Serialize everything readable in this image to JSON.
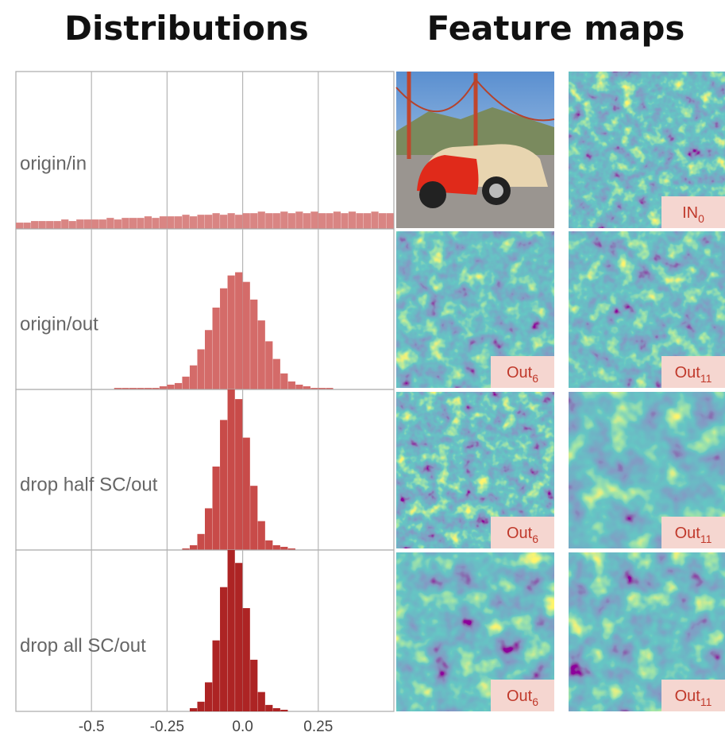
{
  "chart_data": {
    "type": "histogram",
    "title": "Distributions",
    "bins": [
      -0.75,
      -0.725,
      -0.7,
      -0.675,
      -0.65,
      -0.625,
      -0.6,
      -0.575,
      -0.55,
      -0.525,
      -0.5,
      -0.475,
      -0.45,
      -0.425,
      -0.4,
      -0.375,
      -0.35,
      -0.325,
      -0.3,
      -0.275,
      -0.25,
      -0.225,
      -0.2,
      -0.175,
      -0.15,
      -0.125,
      -0.1,
      -0.075,
      -0.05,
      -0.025,
      0,
      0.025,
      0.05,
      0.075,
      0.1,
      0.125,
      0.15,
      0.175,
      0.2,
      0.225,
      0.25,
      0.275,
      0.3,
      0.325,
      0.35,
      0.375,
      0.4,
      0.425,
      0.45,
      0.475,
      0.5
    ],
    "series": [
      {
        "name": "origin/in",
        "color": "#d98583",
        "values": [
          4,
          4,
          5,
          5,
          5,
          5,
          6,
          5,
          6,
          6,
          6,
          6,
          7,
          6,
          7,
          7,
          7,
          8,
          7,
          8,
          8,
          8,
          9,
          8,
          9,
          9,
          10,
          9,
          10,
          9,
          10,
          10,
          11,
          10,
          10,
          11,
          10,
          11,
          10,
          11,
          10,
          10,
          11,
          10,
          11,
          10,
          10,
          11,
          10,
          10
        ]
      },
      {
        "name": "origin/out",
        "color": "#d46b69",
        "values": [
          0,
          0,
          0,
          0,
          0,
          0,
          0,
          0,
          0,
          0,
          0,
          0,
          0,
          1,
          1,
          1,
          1,
          1,
          1,
          2,
          3,
          4,
          8,
          15,
          25,
          37,
          51,
          63,
          71,
          73,
          67,
          56,
          43,
          30,
          19,
          10,
          5,
          3,
          2,
          1,
          1,
          1,
          0,
          0,
          0,
          0,
          0,
          0,
          0,
          0
        ]
      },
      {
        "name": "drop half SC/out",
        "color": "#c84b49",
        "values": [
          0,
          0,
          0,
          0,
          0,
          0,
          0,
          0,
          0,
          0,
          0,
          0,
          0,
          0,
          0,
          0,
          0,
          0,
          0,
          0,
          0,
          0,
          1,
          3,
          10,
          26,
          52,
          81,
          100,
          94,
          70,
          40,
          18,
          6,
          3,
          2,
          1,
          0,
          0,
          0,
          0,
          0,
          0,
          0,
          0,
          0,
          0,
          0,
          0,
          0
        ]
      },
      {
        "name": "drop all SC/out",
        "color": "#ad2424",
        "values": [
          0,
          0,
          0,
          0,
          0,
          0,
          0,
          0,
          0,
          0,
          0,
          0,
          0,
          0,
          0,
          0,
          0,
          0,
          0,
          0,
          0,
          0,
          0,
          2,
          6,
          18,
          44,
          77,
          100,
          92,
          64,
          32,
          12,
          4,
          2,
          1,
          0,
          0,
          0,
          0,
          0,
          0,
          0,
          0,
          0,
          0,
          0,
          0,
          0,
          0
        ]
      }
    ],
    "xlim": [
      -0.75,
      0.5
    ],
    "xticks": [
      -0.5,
      -0.25,
      {
        "value": 0,
        "label": "0.0"
      },
      0.25
    ],
    "ylim": [
      0,
      100
    ],
    "grid": true
  },
  "feature_maps": {
    "title": "Feature maps",
    "labels": [
      {
        "text": "IN",
        "sub": "0"
      },
      {
        "text": "Out",
        "sub": "6"
      },
      {
        "text": "Out",
        "sub": "11"
      },
      {
        "text": "Out",
        "sub": "6"
      },
      {
        "text": "Out",
        "sub": "11"
      },
      {
        "text": "Out",
        "sub": "6"
      },
      {
        "text": "Out",
        "sub": "11"
      }
    ]
  }
}
